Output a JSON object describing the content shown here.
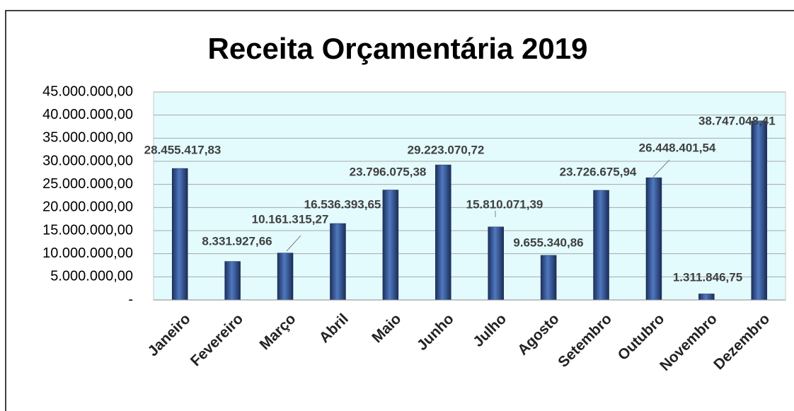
{
  "chart_data": {
    "type": "bar",
    "title": "Receita Orçamentária 2019",
    "categories": [
      "Janeiro",
      "Fevereiro",
      "Março",
      "Abril",
      "Maio",
      "Junho",
      "Julho",
      "Agosto",
      "Setembro",
      "Outubro",
      "Novembro",
      "Dezembro"
    ],
    "values": [
      28455417.83,
      8331927.66,
      10161315.27,
      16536393.65,
      23796075.38,
      29223070.72,
      15810071.39,
      9655340.86,
      23726675.94,
      26448401.54,
      1311846.75,
      38747048.41
    ],
    "value_labels": [
      "28.455.417,83",
      "8.331.927,66",
      "10.161.315,27",
      "16.536.393,65",
      "23.796.075,38",
      "29.223.070,72",
      "15.810.071,39",
      "9.655.340,86",
      "23.726.675,94",
      "26.448.401,54",
      "1.311.846,75",
      "38.747.048,41"
    ],
    "color": "#3d62a8",
    "ylim": [
      0,
      45000000
    ],
    "yticks": [
      {
        "value": 0,
        "label": "-"
      },
      {
        "value": 5000000,
        "label": "5.000.000,00"
      },
      {
        "value": 10000000,
        "label": "10.000.000,00"
      },
      {
        "value": 15000000,
        "label": "15.000.000,00"
      },
      {
        "value": 20000000,
        "label": "20.000.000,00"
      },
      {
        "value": 25000000,
        "label": "25.000.000,00"
      },
      {
        "value": 30000000,
        "label": "30.000.000,00"
      },
      {
        "value": 35000000,
        "label": "35.000.000,00"
      },
      {
        "value": 40000000,
        "label": "40.000.000,00"
      },
      {
        "value": 45000000,
        "label": "45.000.000,00"
      }
    ],
    "grid": true
  }
}
